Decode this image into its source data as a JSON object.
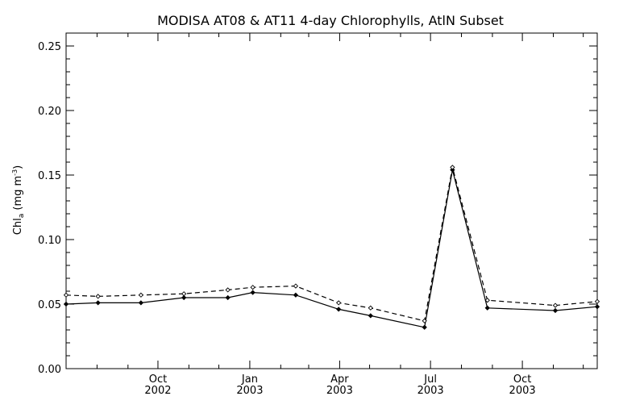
{
  "chart_data": {
    "type": "line",
    "title": "MODISA AT08 & AT11 4-day Chlorophylls, AtlN Subset",
    "ylabel_main": "Chl",
    "ylabel_sub": "a",
    "ylabel_units_open": " (mg m",
    "ylabel_units_sup": "-3",
    "ylabel_units_close": ")",
    "xlabel": "",
    "ylim": [
      0.0,
      0.26
    ],
    "y_ticks": [
      "0.00",
      "0.05",
      "0.10",
      "0.15",
      "0.20",
      "0.25"
    ],
    "y_tick_values": [
      0.0,
      0.05,
      0.1,
      0.15,
      0.2,
      0.25
    ],
    "xlim": [
      "2002-07-01",
      "2003-12-15"
    ],
    "x_ticks": [
      {
        "date": "2002-10-01",
        "line1": "Oct",
        "line2": "2002"
      },
      {
        "date": "2003-01-01",
        "line1": "Jan",
        "line2": "2003"
      },
      {
        "date": "2003-04-01",
        "line1": "Apr",
        "line2": "2003"
      },
      {
        "date": "2003-07-01",
        "line1": "Jul",
        "line2": "2003"
      },
      {
        "date": "2003-10-01",
        "line1": "Oct",
        "line2": "2003"
      }
    ],
    "grid": false,
    "series": [
      {
        "style": "solid",
        "color": "#000000",
        "x": [
          "2002-07-01",
          "2002-08-02",
          "2002-09-14",
          "2002-10-27",
          "2002-12-10",
          "2003-01-04",
          "2003-02-16",
          "2003-03-31",
          "2003-05-02",
          "2003-06-25",
          "2003-07-23",
          "2003-08-27",
          "2003-11-03",
          "2003-12-15"
        ],
        "values": [
          0.05,
          0.051,
          0.051,
          0.055,
          0.055,
          0.059,
          0.057,
          0.046,
          0.041,
          0.032,
          0.154,
          0.047,
          0.045,
          0.048
        ]
      },
      {
        "style": "dashed",
        "color": "#000000",
        "x": [
          "2002-07-01",
          "2002-08-02",
          "2002-09-14",
          "2002-10-27",
          "2002-12-10",
          "2003-01-04",
          "2003-02-16",
          "2003-03-31",
          "2003-05-02",
          "2003-06-25",
          "2003-07-23",
          "2003-08-27",
          "2003-11-03",
          "2003-12-15"
        ],
        "values": [
          0.057,
          0.056,
          0.057,
          0.058,
          0.061,
          0.063,
          0.064,
          0.051,
          0.047,
          0.037,
          0.156,
          0.053,
          0.049,
          0.052
        ]
      }
    ]
  }
}
